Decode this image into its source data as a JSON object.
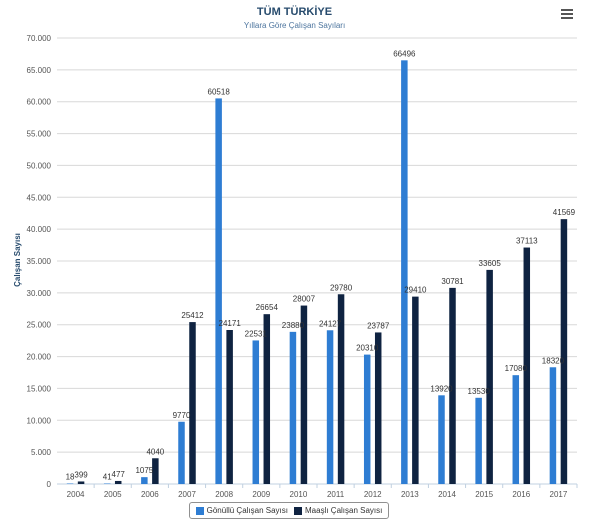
{
  "header": {
    "title": "TÜM TÜRKİYE",
    "subtitle": "Yıllara Göre Çalışan Sayıları",
    "menu_icon": "hamburger-menu-icon"
  },
  "colors": {
    "series_1": "#2e7dd3",
    "series_2": "#0f2341",
    "grid": "#d8d8d8",
    "axis_label": "#274b6d"
  },
  "chart_data": {
    "type": "bar",
    "title": "TÜM TÜRKİYE",
    "subtitle": "Yıllara Göre Çalışan Sayıları",
    "xlabel": "",
    "ylabel": "Çalışan Sayısı",
    "ylim": [
      0,
      70000
    ],
    "yticks": [
      "0",
      "5.000",
      "10.000",
      "15.000",
      "20.000",
      "25.000",
      "30.000",
      "35.000",
      "40.000",
      "45.000",
      "50.000",
      "55.000",
      "60.000",
      "65.000",
      "70.000"
    ],
    "grid": true,
    "legend_position": "bottom-center",
    "categories": [
      "2004",
      "2005",
      "2006",
      "2007",
      "2008",
      "2009",
      "2010",
      "2011",
      "2012",
      "2013",
      "2014",
      "2015",
      "2016",
      "2017"
    ],
    "series": [
      {
        "name": "Gönüllü Çalışan Sayısı",
        "values": [
          18,
          41,
          1075,
          9770,
          60518,
          22531,
          23880,
          24127,
          20310,
          66496,
          13920,
          13530,
          17080,
          18320
        ],
        "labels": [
          "18",
          "41",
          "1075",
          "9770",
          "60518",
          "22531",
          "23880",
          "24127",
          "20310",
          "66496",
          "13920",
          "13530",
          "17080",
          "18320"
        ]
      },
      {
        "name": "Maaşlı Çalışan Sayısı",
        "values": [
          399,
          477,
          4040,
          25412,
          24171,
          26654,
          28007,
          29780,
          23787,
          29410,
          30781,
          33605,
          37113,
          41569
        ],
        "labels": [
          "399",
          "477",
          "4040",
          "25412",
          "24171",
          "26654",
          "28007",
          "29780",
          "23787",
          "29410",
          "30781",
          "33605",
          "37113",
          "41569"
        ]
      }
    ]
  }
}
